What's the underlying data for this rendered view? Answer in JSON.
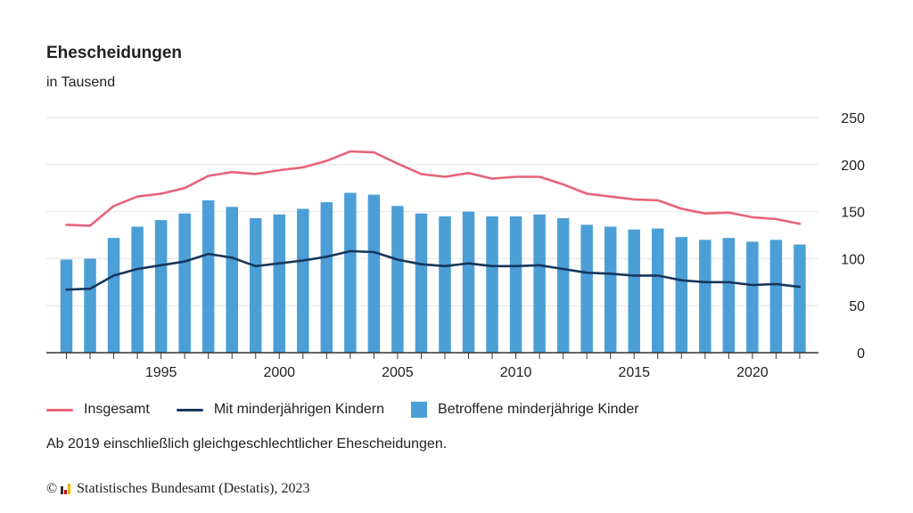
{
  "title": "Ehescheidungen",
  "subtitle": "in Tausend",
  "note": "Ab 2019 einschließlich gleichgeschlechtlicher Ehescheidungen.",
  "footer": {
    "copyright_symbol": "©",
    "source": "Statistisches Bundesamt (Destatis), 2023"
  },
  "colors": {
    "insgesamt": "#e8637a",
    "mit_kindern": "#16365c",
    "kinder_bars": "#4c9fd6",
    "grid": "#e4e4e4",
    "axis": "#333333"
  },
  "chart_data": {
    "type": "bar",
    "x": [
      1991,
      1992,
      1993,
      1994,
      1995,
      1996,
      1997,
      1998,
      1999,
      2000,
      2001,
      2002,
      2003,
      2004,
      2005,
      2006,
      2007,
      2008,
      2009,
      2010,
      2011,
      2012,
      2013,
      2014,
      2015,
      2016,
      2017,
      2018,
      2019,
      2020,
      2021,
      2022
    ],
    "x_ticks": [
      1995,
      2000,
      2005,
      2010,
      2015,
      2020
    ],
    "y_ticks": [
      0,
      50,
      100,
      150,
      200,
      250
    ],
    "ylim": [
      0,
      250
    ],
    "y_axis_position": "right",
    "grid": true,
    "legend_position": "bottom-left",
    "series": [
      {
        "name": "Insgesamt",
        "kind": "line",
        "values": [
          136,
          135,
          156,
          166,
          169,
          175,
          188,
          192,
          190,
          194,
          197,
          204,
          214,
          213,
          201,
          190,
          187,
          191,
          185,
          187,
          187,
          179,
          169,
          166,
          163,
          162,
          153,
          148,
          149,
          144,
          142,
          137
        ]
      },
      {
        "name": "Mit minderjährigen Kindern",
        "kind": "line",
        "values": [
          67,
          68,
          82,
          89,
          93,
          97,
          105,
          101,
          92,
          95,
          98,
          102,
          108,
          107,
          99,
          94,
          92,
          95,
          92,
          92,
          93,
          89,
          85,
          84,
          82,
          82,
          77,
          75,
          75,
          72,
          73,
          70
        ]
      },
      {
        "name": "Betroffene minderjährige Kinder",
        "kind": "bar",
        "values": [
          99,
          100,
          122,
          134,
          141,
          148,
          162,
          155,
          143,
          147,
          153,
          160,
          170,
          168,
          156,
          148,
          145,
          150,
          145,
          145,
          147,
          143,
          136,
          134,
          131,
          132,
          123,
          120,
          122,
          118,
          120,
          115
        ]
      }
    ]
  }
}
